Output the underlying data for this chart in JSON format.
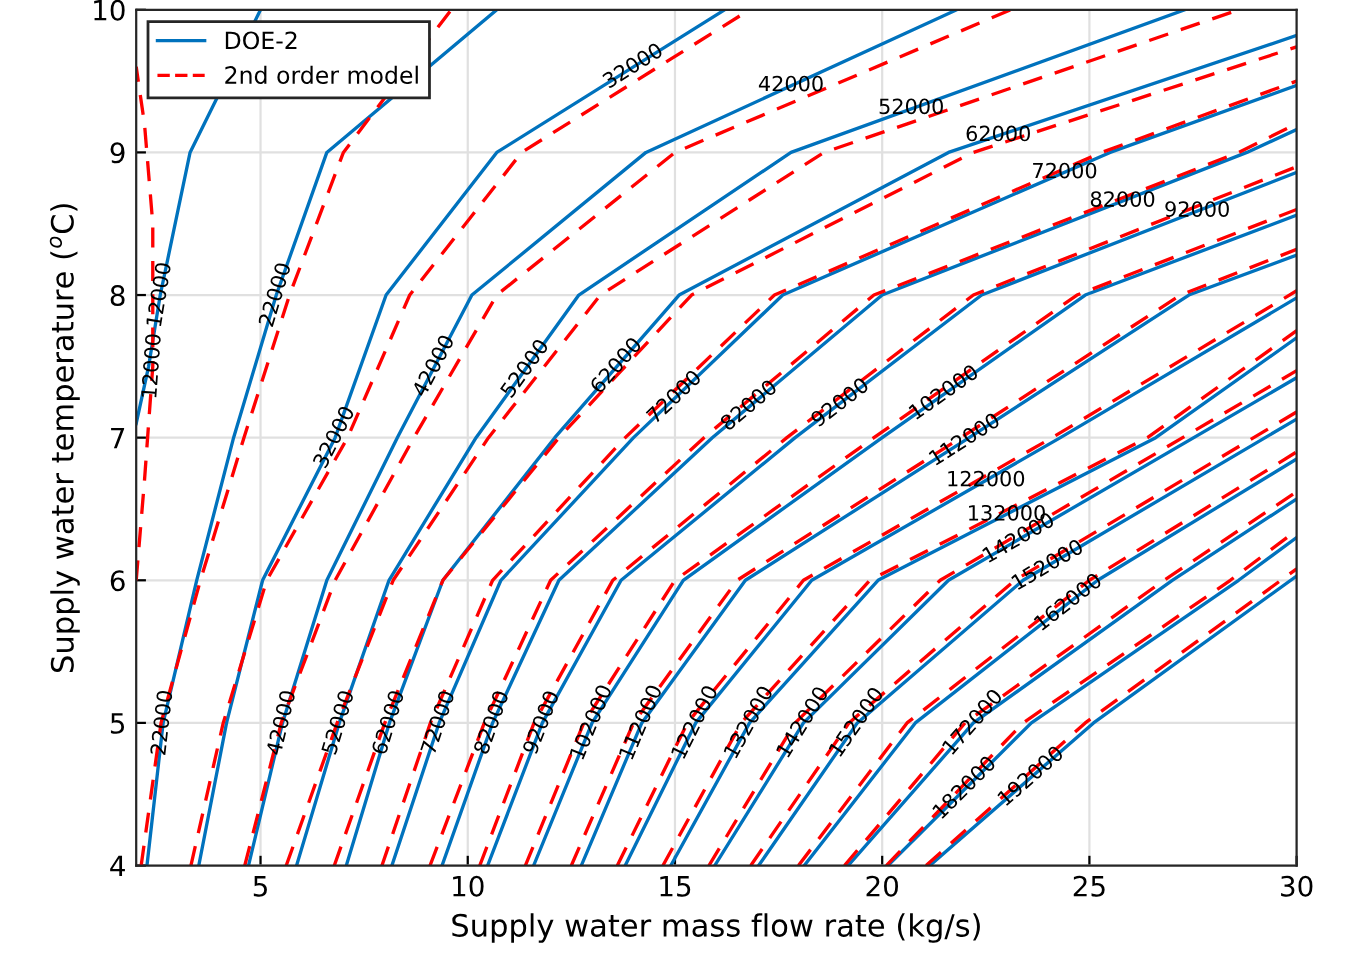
{
  "chart_data": {
    "type": "line",
    "xlabel": "Supply water mass flow rate (kg/s)",
    "ylabel": "Supply water temperature ($^{o}$C)",
    "xlim": [
      2,
      30
    ],
    "xticks": [
      5,
      10,
      15,
      20,
      25,
      30
    ],
    "ylim": [
      4,
      10
    ],
    "yticks": [
      4,
      5,
      6,
      7,
      8,
      9,
      10
    ],
    "grid": true,
    "legend": "top left",
    "series": [
      {
        "name": "DOE-2",
        "color": "#0072bd",
        "line_style": "solid",
        "x": [
          2.0,
          2.3,
          2.58,
          3.3,
          5.0
        ],
        "values": [
          7.1,
          7.5,
          8,
          9,
          10
        ]
      },
      {
        "color": "#0072bd",
        "line_style": "solid",
        "x": [
          2.26,
          2.65,
          3.46,
          4.35,
          5.38,
          6.6,
          10.7
        ],
        "values": [
          4,
          5,
          6,
          7,
          8,
          9,
          10
        ]
      },
      {
        "color": "#0072bd",
        "line_style": "solid",
        "x": [
          3.51,
          4.18,
          5.05,
          6.8,
          8.03,
          10.7,
          16.2
        ],
        "values": [
          4,
          5,
          6,
          7,
          8,
          9,
          10
        ]
      },
      {
        "color": "#0072bd",
        "line_style": "solid",
        "x": [
          4.71,
          5.53,
          6.6,
          8.3,
          10.1,
          14.3,
          21.8
        ],
        "values": [
          4,
          5,
          6,
          7,
          8,
          9,
          10
        ]
      },
      {
        "color": "#0072bd",
        "line_style": "solid",
        "x": [
          5.87,
          6.9,
          8.1,
          10.2,
          12.68,
          17.8,
          27.3
        ],
        "values": [
          4,
          5,
          6,
          7,
          8,
          9,
          10
        ]
      },
      {
        "color": "#0072bd",
        "line_style": "solid",
        "x": [
          7.07,
          8.11,
          9.4,
          12.1,
          15.1,
          21.6,
          30
        ],
        "values": [
          4,
          5,
          6,
          7,
          8,
          9,
          9.82
        ]
      },
      {
        "color": "#0072bd",
        "line_style": "solid",
        "x": [
          8.17,
          9.31,
          10.8,
          14.0,
          17.6,
          25.5,
          30
        ],
        "values": [
          4,
          5,
          6,
          7,
          8,
          9,
          9.47
        ]
      },
      {
        "color": "#0072bd",
        "line_style": "solid",
        "x": [
          9.38,
          10.6,
          12.2,
          15.9,
          20.0,
          28.8,
          30
        ],
        "values": [
          4,
          5,
          6,
          7,
          8,
          9,
          9.16
        ]
      },
      {
        "color": "#0072bd",
        "line_style": "solid",
        "x": [
          10.48,
          11.8,
          13.7,
          17.9,
          22.4,
          30
        ],
        "values": [
          4,
          5,
          6,
          7,
          8,
          8.86
        ]
      },
      {
        "color": "#0072bd",
        "line_style": "solid",
        "x": [
          11.59,
          13.0,
          15.2,
          20.0,
          24.9,
          30
        ],
        "values": [
          4,
          5,
          6,
          7,
          8,
          8.56
        ]
      },
      {
        "color": "#0072bd",
        "line_style": "solid",
        "x": [
          12.74,
          14.2,
          16.7,
          22.1,
          27.4,
          30
        ],
        "values": [
          4,
          5,
          6,
          7,
          8,
          8.28
        ]
      },
      {
        "color": "#0072bd",
        "line_style": "solid",
        "x": [
          13.8,
          15.5,
          18.3,
          24.3,
          30
        ],
        "values": [
          4,
          5,
          6,
          7,
          7.98
        ]
      },
      {
        "color": "#0072bd",
        "line_style": "solid",
        "x": [
          14.9,
          16.8,
          19.9,
          26.6,
          30
        ],
        "values": [
          4,
          5,
          6,
          7,
          7.7
        ]
      },
      {
        "color": "#0072bd",
        "line_style": "solid",
        "x": [
          15.96,
          18.1,
          21.6,
          30
        ],
        "values": [
          4,
          5,
          6,
          7.42
        ]
      },
      {
        "color": "#0072bd",
        "line_style": "solid",
        "x": [
          17.02,
          19.4,
          23.4,
          30
        ],
        "values": [
          4,
          5,
          6,
          7.13
        ]
      },
      {
        "color": "#0072bd",
        "line_style": "solid",
        "x": [
          18.12,
          20.8,
          25.2,
          30
        ],
        "values": [
          4,
          5,
          6,
          6.85
        ]
      },
      {
        "color": "#0072bd",
        "line_style": "solid",
        "x": [
          19.18,
          22.2,
          27.0,
          30
        ],
        "values": [
          4,
          5,
          6,
          6.57
        ]
      },
      {
        "color": "#0072bd",
        "line_style": "solid",
        "x": [
          20.14,
          23.6,
          28.6,
          30
        ],
        "values": [
          4,
          5,
          6,
          6.3
        ]
      },
      {
        "color": "#0072bd",
        "line_style": "solid",
        "x": [
          21.15,
          25.1,
          30
        ],
        "values": [
          4,
          5,
          6.03
        ]
      },
      {
        "name": "2nd order model",
        "color": "#ff0000",
        "line_style": "dashed",
        "x": [
          2.0,
          2.2,
          2.4,
          2.4,
          2.2,
          2.0
        ],
        "values": [
          6.0,
          6.7,
          7.5,
          8.5,
          9.2,
          9.6
        ]
      },
      {
        "color": "#ff0000",
        "line_style": "dashed",
        "x": [
          2.12,
          2.6,
          3.55,
          4.6,
          5.7,
          7.0,
          9.6
        ],
        "values": [
          4,
          5,
          6,
          7,
          8,
          9,
          10
        ]
      },
      {
        "color": "#ff0000",
        "line_style": "dashed",
        "x": [
          3.32,
          4.1,
          5.15,
          7.1,
          8.6,
          11.3,
          16.8
        ],
        "values": [
          4,
          5,
          6,
          7,
          8,
          9,
          10
        ]
      },
      {
        "color": "#ff0000",
        "line_style": "dashed",
        "x": [
          4.62,
          5.5,
          6.8,
          8.7,
          10.7,
          15.0,
          23.1
        ],
        "values": [
          4,
          5,
          6,
          7,
          8,
          9,
          10
        ]
      },
      {
        "color": "#ff0000",
        "line_style": "dashed",
        "x": [
          5.62,
          6.85,
          8.2,
          10.5,
          13.2,
          18.6,
          28.6
        ],
        "values": [
          4,
          5,
          6,
          7,
          8,
          9,
          10
        ]
      },
      {
        "color": "#ff0000",
        "line_style": "dashed",
        "x": [
          6.78,
          8.0,
          9.4,
          12.2,
          15.4,
          22.2,
          30
        ],
        "values": [
          4,
          5,
          6,
          7,
          8,
          9,
          9.74
        ]
      },
      {
        "color": "#ff0000",
        "line_style": "dashed",
        "x": [
          7.93,
          9.1,
          10.6,
          13.8,
          17.4,
          25.3,
          30
        ],
        "values": [
          4,
          5,
          6,
          7,
          8,
          9,
          9.5
        ]
      },
      {
        "color": "#ff0000",
        "line_style": "dashed",
        "x": [
          9.09,
          10.4,
          12.0,
          15.7,
          19.8,
          28.6,
          30
        ],
        "values": [
          4,
          5,
          6,
          7,
          8,
          9,
          9.2
        ]
      },
      {
        "color": "#ff0000",
        "line_style": "dashed",
        "x": [
          10.29,
          11.6,
          13.5,
          17.7,
          22.2,
          30
        ],
        "values": [
          4,
          5,
          6,
          7,
          8,
          8.9
        ]
      },
      {
        "color": "#ff0000",
        "line_style": "dashed",
        "x": [
          11.39,
          12.8,
          15.0,
          19.8,
          24.7,
          30
        ],
        "values": [
          4,
          5,
          6,
          7,
          8,
          8.6
        ]
      },
      {
        "color": "#ff0000",
        "line_style": "dashed",
        "x": [
          12.5,
          14.0,
          16.5,
          21.9,
          27.2,
          30
        ],
        "values": [
          4,
          5,
          6,
          7,
          8,
          8.32
        ]
      },
      {
        "color": "#ff0000",
        "line_style": "dashed",
        "x": [
          13.61,
          15.3,
          18.1,
          24.1,
          30
        ],
        "values": [
          4,
          5,
          6,
          7,
          8.03
        ]
      },
      {
        "color": "#ff0000",
        "line_style": "dashed",
        "x": [
          14.71,
          16.6,
          19.7,
          26.4,
          30
        ],
        "values": [
          4,
          5,
          6,
          7,
          7.75
        ]
      },
      {
        "color": "#ff0000",
        "line_style": "dashed",
        "x": [
          15.82,
          17.9,
          21.4,
          30
        ],
        "values": [
          4,
          5,
          6,
          7.47
        ]
      },
      {
        "color": "#ff0000",
        "line_style": "dashed",
        "x": [
          16.83,
          19.2,
          23.2,
          30
        ],
        "values": [
          4,
          5,
          6,
          7.18
        ]
      },
      {
        "color": "#ff0000",
        "line_style": "dashed",
        "x": [
          17.98,
          20.6,
          25.0,
          30
        ],
        "values": [
          4,
          5,
          6,
          6.9
        ]
      },
      {
        "color": "#ff0000",
        "line_style": "dashed",
        "x": [
          19.09,
          22.0,
          26.8,
          30
        ],
        "values": [
          4,
          5,
          6,
          6.62
        ]
      },
      {
        "color": "#ff0000",
        "line_style": "dashed",
        "x": [
          20.1,
          23.4,
          28.4,
          30
        ],
        "values": [
          4,
          5,
          6,
          6.35
        ]
      },
      {
        "color": "#ff0000",
        "line_style": "dashed",
        "x": [
          21.06,
          24.9,
          30
        ],
        "values": [
          4,
          5,
          6.08
        ]
      }
    ],
    "annotations": [
      {
        "text": "12000",
        "x": 2.58,
        "y": 8
      },
      {
        "text": "12000",
        "x": 2.4,
        "y": 7.5
      },
      {
        "text": "22000",
        "x": 5.38,
        "y": 8
      },
      {
        "text": "32000",
        "x": 6.8,
        "y": 7
      },
      {
        "text": "42000",
        "x": 9.2,
        "y": 7.5
      },
      {
        "text": "52000",
        "x": 11.4,
        "y": 7.48
      },
      {
        "text": "62000",
        "x": 13.6,
        "y": 7.5
      },
      {
        "text": "72000",
        "x": 15.0,
        "y": 7.28
      },
      {
        "text": "82000",
        "x": 16.8,
        "y": 7.22
      },
      {
        "text": "92000",
        "x": 19.0,
        "y": 7.24
      },
      {
        "text": "102000",
        "x": 21.5,
        "y": 7.31
      },
      {
        "text": "112000",
        "x": 22.0,
        "y": 6.98
      },
      {
        "text": "122000",
        "x": 22.5,
        "y": 6.7
      },
      {
        "text": "132000",
        "x": 23.0,
        "y": 6.46
      },
      {
        "text": "142000",
        "x": 23.3,
        "y": 6.29
      },
      {
        "text": "152000",
        "x": 24.0,
        "y": 6.1
      },
      {
        "text": "162000",
        "x": 24.5,
        "y": 5.84
      },
      {
        "text": "32000",
        "x": 14.0,
        "y": 9.6
      },
      {
        "text": "42000",
        "x": 17.8,
        "y": 9.47
      },
      {
        "text": "52000",
        "x": 20.7,
        "y": 9.31
      },
      {
        "text": "62000",
        "x": 22.8,
        "y": 9.12
      },
      {
        "text": "72000",
        "x": 24.4,
        "y": 8.86
      },
      {
        "text": "82000",
        "x": 25.8,
        "y": 8.66
      },
      {
        "text": "92000",
        "x": 27.6,
        "y": 8.59
      },
      {
        "text": "22000",
        "x": 2.65,
        "y": 5
      },
      {
        "text": "42000",
        "x": 5.53,
        "y": 5
      },
      {
        "text": "52000",
        "x": 6.9,
        "y": 5
      },
      {
        "text": "62000",
        "x": 8.11,
        "y": 5
      },
      {
        "text": "72000",
        "x": 9.31,
        "y": 5
      },
      {
        "text": "82000",
        "x": 10.6,
        "y": 5
      },
      {
        "text": "92000",
        "x": 11.8,
        "y": 5
      },
      {
        "text": "102000",
        "x": 13.0,
        "y": 5
      },
      {
        "text": "112000",
        "x": 14.2,
        "y": 5
      },
      {
        "text": "122000",
        "x": 15.5,
        "y": 5
      },
      {
        "text": "132000",
        "x": 16.8,
        "y": 5
      },
      {
        "text": "142000",
        "x": 18.1,
        "y": 5
      },
      {
        "text": "152000",
        "x": 19.4,
        "y": 5
      },
      {
        "text": "172000",
        "x": 22.2,
        "y": 5
      },
      {
        "text": "182000",
        "x": 22.0,
        "y": 4.54
      },
      {
        "text": "192000",
        "x": 23.6,
        "y": 4.62
      }
    ]
  }
}
